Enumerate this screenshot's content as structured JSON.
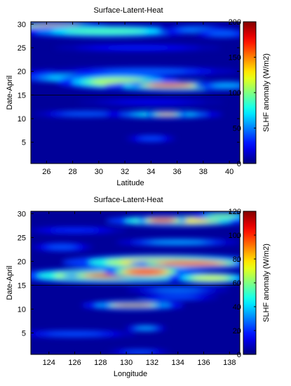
{
  "chart_data": [
    {
      "type": "heatmap",
      "title": "Surface-Latent-Heat",
      "xlabel": "Latitude",
      "ylabel": "Date-April",
      "colorbar_label": "SLHF anomaly (W/m2)",
      "xlim": [
        24.8,
        40.8
      ],
      "ylim": [
        0.5,
        30.5
      ],
      "xticks": [
        26,
        28,
        30,
        32,
        34,
        36,
        38,
        40
      ],
      "yticks": [
        5,
        10,
        15,
        20,
        25,
        30
      ],
      "clim": [
        0,
        200
      ],
      "cticks": [
        0,
        50,
        100,
        150,
        200
      ],
      "colormap": "jet",
      "background_value": 5,
      "reference_line_y": 15,
      "blobs": [
        {
          "x": 27.0,
          "y": 29.3,
          "rx": 2.6,
          "ry": 0.7,
          "value": 150
        },
        {
          "x": 30.5,
          "y": 28.5,
          "rx": 4.5,
          "ry": 0.8,
          "value": 90
        },
        {
          "x": 37.5,
          "y": 28.8,
          "rx": 1.8,
          "ry": 0.6,
          "value": 50
        },
        {
          "x": 39.5,
          "y": 28.0,
          "rx": 1.5,
          "ry": 0.6,
          "value": 45
        },
        {
          "x": 33.0,
          "y": 25.0,
          "rx": 4.0,
          "ry": 0.5,
          "value": 30
        },
        {
          "x": 28.0,
          "y": 19.5,
          "rx": 3.0,
          "ry": 0.6,
          "value": 40
        },
        {
          "x": 33.5,
          "y": 20.0,
          "rx": 4.5,
          "ry": 0.6,
          "value": 45
        },
        {
          "x": 28.0,
          "y": 18.6,
          "rx": 2.8,
          "ry": 0.6,
          "value": 70
        },
        {
          "x": 31.5,
          "y": 17.8,
          "rx": 3.0,
          "ry": 1.0,
          "value": 110
        },
        {
          "x": 36.0,
          "y": 16.9,
          "rx": 3.5,
          "ry": 0.7,
          "value": 130
        },
        {
          "x": 35.5,
          "y": 17.0,
          "rx": 2.0,
          "ry": 0.45,
          "value": 180
        },
        {
          "x": 39.8,
          "y": 17.0,
          "rx": 1.5,
          "ry": 0.6,
          "value": 60
        },
        {
          "x": 34.0,
          "y": 13.5,
          "rx": 3.5,
          "ry": 0.45,
          "value": 25
        },
        {
          "x": 29.0,
          "y": 11.0,
          "rx": 2.5,
          "ry": 0.45,
          "value": 45
        },
        {
          "x": 35.0,
          "y": 10.9,
          "rx": 2.8,
          "ry": 0.5,
          "value": 80
        },
        {
          "x": 35.2,
          "y": 10.9,
          "rx": 1.0,
          "ry": 0.3,
          "value": 140
        },
        {
          "x": 34.0,
          "y": 5.8,
          "rx": 1.2,
          "ry": 0.5,
          "value": 40
        }
      ]
    },
    {
      "type": "heatmap",
      "title": "Surface-Latent-Heat",
      "xlabel": "Longitude",
      "ylabel": "Date-April",
      "colorbar_label": "SLHF anomaly (W/m2)",
      "xlim": [
        122.6,
        138.8
      ],
      "ylim": [
        0.5,
        30.5
      ],
      "xticks": [
        124,
        126,
        128,
        130,
        132,
        134,
        136,
        138
      ],
      "yticks": [
        5,
        10,
        15,
        20,
        25,
        30
      ],
      "clim": [
        0,
        120
      ],
      "cticks": [
        0,
        20,
        40,
        60,
        80,
        100,
        120
      ],
      "colormap": "jet",
      "background_value": 3,
      "reference_line_y": 15,
      "blobs": [
        {
          "x": 134.0,
          "y": 28.5,
          "rx": 3.5,
          "ry": 0.7,
          "value": 80
        },
        {
          "x": 132.8,
          "y": 28.6,
          "rx": 1.2,
          "ry": 0.5,
          "value": 110
        },
        {
          "x": 137.5,
          "y": 29.5,
          "rx": 1.5,
          "ry": 0.5,
          "value": 60
        },
        {
          "x": 126.0,
          "y": 26.5,
          "rx": 2.5,
          "ry": 0.5,
          "value": 20
        },
        {
          "x": 134.0,
          "y": 24.0,
          "rx": 3.0,
          "ry": 0.5,
          "value": 35
        },
        {
          "x": 125.0,
          "y": 23.0,
          "rx": 1.5,
          "ry": 0.6,
          "value": 25
        },
        {
          "x": 133.0,
          "y": 19.8,
          "rx": 5.0,
          "ry": 1.0,
          "value": 80
        },
        {
          "x": 135.0,
          "y": 19.6,
          "rx": 3.0,
          "ry": 0.5,
          "value": 105
        },
        {
          "x": 129.0,
          "y": 17.0,
          "rx": 5.0,
          "ry": 1.0,
          "value": 80
        },
        {
          "x": 129.0,
          "y": 17.0,
          "rx": 2.5,
          "ry": 0.5,
          "value": 110
        },
        {
          "x": 131.5,
          "y": 17.8,
          "rx": 2.0,
          "ry": 0.8,
          "value": 100
        },
        {
          "x": 136.5,
          "y": 16.5,
          "rx": 2.0,
          "ry": 0.7,
          "value": 70
        },
        {
          "x": 134.0,
          "y": 14.0,
          "rx": 2.5,
          "ry": 0.45,
          "value": 30
        },
        {
          "x": 134.0,
          "y": 12.5,
          "rx": 2.0,
          "ry": 0.45,
          "value": 25
        },
        {
          "x": 130.5,
          "y": 10.8,
          "rx": 2.5,
          "ry": 0.6,
          "value": 60
        },
        {
          "x": 130.5,
          "y": 10.8,
          "rx": 1.6,
          "ry": 0.3,
          "value": 115
        },
        {
          "x": 126.0,
          "y": 4.8,
          "rx": 3.0,
          "ry": 0.5,
          "value": 25
        },
        {
          "x": 131.5,
          "y": 6.0,
          "rx": 1.0,
          "ry": 0.45,
          "value": 35
        },
        {
          "x": 131.0,
          "y": 1.0,
          "rx": 1.5,
          "ry": 0.4,
          "value": 25
        }
      ]
    }
  ]
}
